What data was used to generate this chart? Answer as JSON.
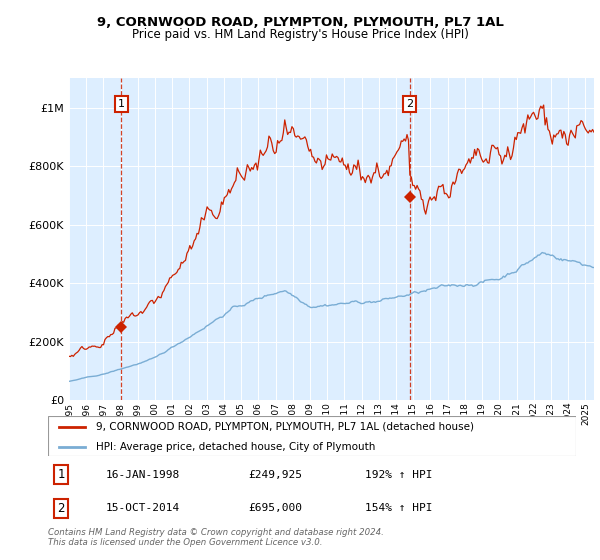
{
  "title": "9, CORNWOOD ROAD, PLYMPTON, PLYMOUTH, PL7 1AL",
  "subtitle": "Price paid vs. HM Land Registry's House Price Index (HPI)",
  "legend_line1": "9, CORNWOOD ROAD, PLYMPTON, PLYMOUTH, PL7 1AL (detached house)",
  "legend_line2": "HPI: Average price, detached house, City of Plymouth",
  "annotation1_label": "1",
  "annotation1_date": "16-JAN-1998",
  "annotation1_price": "£249,925",
  "annotation1_hpi": "192% ↑ HPI",
  "annotation2_label": "2",
  "annotation2_date": "15-OCT-2014",
  "annotation2_price": "£695,000",
  "annotation2_hpi": "154% ↑ HPI",
  "footer": "Contains HM Land Registry data © Crown copyright and database right 2024.\nThis data is licensed under the Open Government Licence v3.0.",
  "ylim": [
    0,
    1100000
  ],
  "yticks": [
    0,
    200000,
    400000,
    600000,
    800000,
    1000000
  ],
  "hpi_color": "#7aadd4",
  "price_color": "#cc2200",
  "bg_color": "#ddeeff",
  "sale1_year": 1998.04,
  "sale1_price": 249925,
  "sale2_year": 2014.79,
  "sale2_price": 695000,
  "xmin": 1995,
  "xmax": 2025.5
}
